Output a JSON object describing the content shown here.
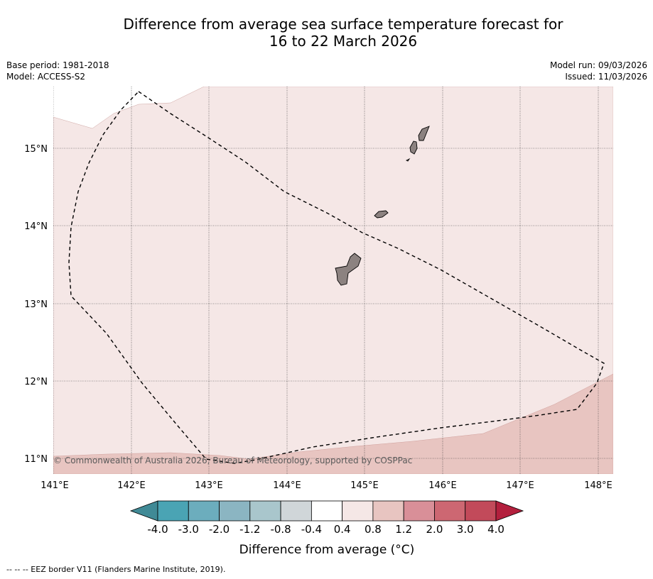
{
  "title_line1": "Difference from average sea surface temperature forecast for",
  "title_line2": "16 to 22 March 2026",
  "meta": {
    "base_period": "Base period: 1981-2018",
    "model": "Model: ACCESS-S2",
    "model_run": "Model run: 09/03/2026",
    "issued": "Issued: 11/03/2026"
  },
  "copyright": "© Commonwealth of Australia 2026, Bureau of Meteorology, supported by COSPPac",
  "lat_labels": [
    "15°N",
    "14°N",
    "13°N",
    "12°N",
    "11°N"
  ],
  "lon_labels": [
    "141°E",
    "142°E",
    "143°E",
    "144°E",
    "145°E",
    "146°E",
    "147°E",
    "148°E"
  ],
  "colorbar": {
    "title": "Difference from average (°C)",
    "ticks": [
      "-4.0",
      "-3.0",
      "-2.0",
      "-1.2",
      "-0.8",
      "-0.4",
      "0.4",
      "0.8",
      "1.2",
      "2.0",
      "3.0",
      "4.0"
    ],
    "colors": [
      "#408a96",
      "#4aa4b4",
      "#6cadbd",
      "#8bb5c2",
      "#a9c6cc",
      "#d0d6d9",
      "#ffffff",
      "#f5e7e6",
      "#e8c5c1",
      "#d98f98",
      "#cd6772",
      "#c24a5a",
      "#b31f3d"
    ]
  },
  "footer": "--  --  -- EEZ border V11 (Flanders Marine Institute, 2019)."
}
